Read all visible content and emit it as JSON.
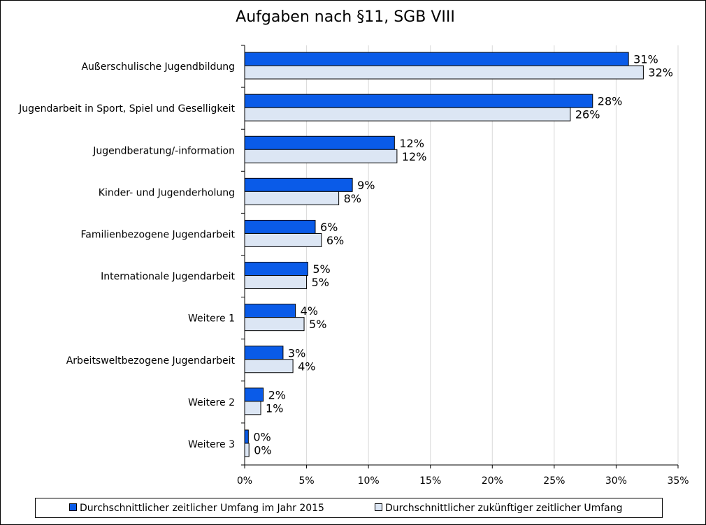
{
  "chart_data": {
    "type": "bar",
    "orientation": "horizontal",
    "title": "Aufgaben nach §11, SGB VIII",
    "categories": [
      "Außerschulische Jugendbildung",
      "Jugendarbeit in Sport, Spiel und Geselligkeit",
      "Jugendberatung/-information",
      "Kinder- und Jugenderholung",
      "Familienbezogene Jugendarbeit",
      "Internationale Jugendarbeit",
      "Weitere 1",
      "Arbeitsweltbezogene Jugendarbeit",
      "Weitere 2",
      "Weitere 3"
    ],
    "series": [
      {
        "name": "Durchschnittlicher zeitlicher Umfang im Jahr 2015",
        "color": "#0a5be8",
        "values": [
          31.0,
          28.1,
          12.1,
          8.7,
          5.7,
          5.1,
          4.1,
          3.1,
          1.5,
          0.3
        ],
        "labels": [
          "31%",
          "28%",
          "12%",
          "9%",
          "6%",
          "5%",
          "4%",
          "3%",
          "2%",
          "0%"
        ]
      },
      {
        "name": "Durchschnittlicher zukünftiger zeitlicher Umfang",
        "color": "#dce6f4",
        "values": [
          32.2,
          26.3,
          12.3,
          7.6,
          6.2,
          5.0,
          4.8,
          3.9,
          1.3,
          0.35
        ],
        "labels": [
          "32%",
          "26%",
          "12%",
          "8%",
          "6%",
          "5%",
          "5%",
          "4%",
          "1%",
          "0%"
        ]
      }
    ],
    "xlim": [
      0,
      35
    ],
    "xticks": [
      0,
      5,
      10,
      15,
      20,
      25,
      30,
      35
    ],
    "xtick_labels": [
      "0%",
      "5%",
      "10%",
      "15%",
      "20%",
      "25%",
      "30%",
      "35%"
    ],
    "grid": true,
    "legend_position": "bottom"
  }
}
